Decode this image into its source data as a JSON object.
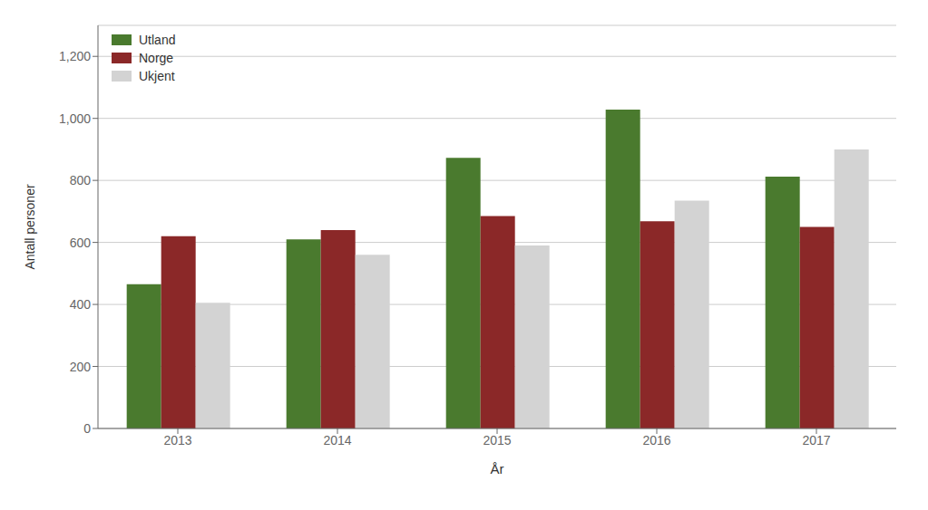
{
  "chart_data": {
    "type": "bar",
    "categories": [
      "2013",
      "2014",
      "2015",
      "2016",
      "2017"
    ],
    "series": [
      {
        "name": "Utland",
        "color": "#4a7a2e",
        "values": [
          465,
          610,
          873,
          1028,
          812
        ]
      },
      {
        "name": "Norge",
        "color": "#8b2828",
        "values": [
          620,
          640,
          685,
          668,
          650
        ]
      },
      {
        "name": "Ukjent",
        "color": "#d3d3d3",
        "values": [
          405,
          560,
          590,
          735,
          900
        ]
      }
    ],
    "xlabel": "År",
    "ylabel": "Antall personer",
    "ylim": [
      0,
      1300
    ],
    "yticks": [
      0,
      200,
      400,
      600,
      800,
      {
        "value": 1000,
        "label": "1,000"
      },
      {
        "value": 1200,
        "label": "1,200"
      }
    ],
    "grid": true,
    "legend": "upper left"
  }
}
